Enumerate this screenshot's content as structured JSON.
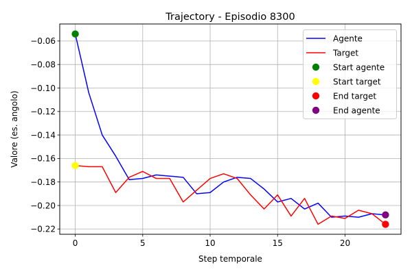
{
  "chart_data": {
    "type": "line",
    "title": "Trajectory - Episodio 8300",
    "xlabel": "Step temporale",
    "ylabel": "Valore (es. angolo)",
    "xlim": [
      -1.15,
      24.15
    ],
    "ylim": [
      -0.2245,
      -0.0455
    ],
    "xticks": [
      0,
      5,
      10,
      15,
      20
    ],
    "xtick_labels": [
      "0",
      "5",
      "10",
      "15",
      "20"
    ],
    "yticks": [
      -0.22,
      -0.2,
      -0.18,
      -0.16,
      -0.14,
      -0.12,
      -0.1,
      -0.08,
      -0.06
    ],
    "ytick_labels": [
      "−0.22",
      "−0.20",
      "−0.18",
      "−0.16",
      "−0.14",
      "−0.12",
      "−0.10",
      "−0.08",
      "−0.06"
    ],
    "grid": true,
    "legend_position": "top-right",
    "x": [
      0,
      1,
      2,
      3,
      4,
      5,
      6,
      7,
      8,
      9,
      10,
      11,
      12,
      13,
      14,
      15,
      16,
      17,
      18,
      19,
      20,
      21,
      22,
      23
    ],
    "series": [
      {
        "name": "Agente",
        "color": "#0000ff",
        "values": [
          -0.054,
          -0.104,
          -0.14,
          -0.158,
          -0.178,
          -0.177,
          -0.174,
          -0.175,
          -0.176,
          -0.19,
          -0.189,
          -0.18,
          -0.176,
          -0.177,
          -0.186,
          -0.197,
          -0.194,
          -0.203,
          -0.198,
          -0.21,
          -0.209,
          -0.21,
          -0.207,
          -0.208
        ]
      },
      {
        "name": "Target",
        "color": "#ff0000",
        "values": [
          -0.166,
          -0.167,
          -0.167,
          -0.189,
          -0.176,
          -0.171,
          -0.177,
          -0.177,
          -0.197,
          -0.187,
          -0.177,
          -0.173,
          -0.177,
          -0.191,
          -0.203,
          -0.191,
          -0.209,
          -0.194,
          -0.216,
          -0.209,
          -0.211,
          -0.204,
          -0.207,
          -0.216
        ]
      }
    ],
    "markers": [
      {
        "name": "Start agente",
        "color": "#008000",
        "x": 0,
        "y": -0.054
      },
      {
        "name": "Start target",
        "color": "#ffff00",
        "x": 0,
        "y": -0.166
      },
      {
        "name": "End target",
        "color": "#ff0000",
        "x": 23,
        "y": -0.216
      },
      {
        "name": "End agente",
        "color": "#800080",
        "x": 23,
        "y": -0.208
      }
    ]
  }
}
